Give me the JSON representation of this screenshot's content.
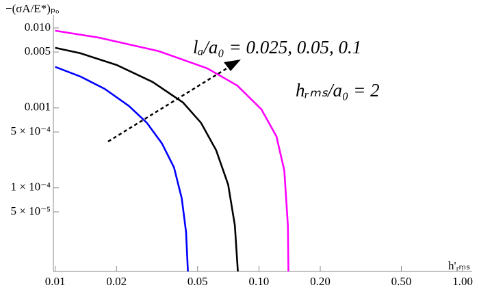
{
  "chart_data": {
    "type": "line",
    "y_label": "−(σA/E*)ₚₒ",
    "x_label": "h'ᵣₘₛ",
    "annotations": [
      "lₐ/a₀ = 0.025, 0.05, 0.1",
      "hᵣₘₛ/a₀ = 2"
    ],
    "log_x": true,
    "log_y": true,
    "xlim": [
      0.0098,
      1.03
    ],
    "ylim": [
      9e-06,
      0.0124
    ],
    "xticks": [
      0.01,
      0.02,
      0.05,
      {
        "value": 0.1,
        "label": "0.10"
      },
      {
        "value": 0.2,
        "label": "0.20"
      },
      {
        "value": 0.5,
        "label": "0.50"
      },
      {
        "value": 1,
        "label": "1.00"
      }
    ],
    "yticks": [
      {
        "value": 0.01,
        "label": "0.010"
      },
      0.005,
      0.001,
      {
        "value": 0.0005,
        "label": "5 × 10⁻⁴"
      },
      {
        "value": 0.0001,
        "label": "1 × 10⁻⁴"
      },
      {
        "value": 5e-05,
        "label": "5 × 10⁻⁵"
      }
    ],
    "series": [
      {
        "color": "#0000ff",
        "x": [
          0.01,
          0.0133,
          0.0175,
          0.023,
          0.0282,
          0.0334,
          0.0383,
          0.0418,
          0.0439,
          0.0448
        ],
        "values": [
          0.00326,
          0.00247,
          0.00173,
          0.00106,
          0.00065,
          0.00036,
          0.00018,
          7.4e-05,
          2.8e-05,
          9e-06
        ]
      },
      {
        "color": "#000000",
        "x": [
          0.01,
          0.0133,
          0.02,
          0.0301,
          0.0424,
          0.052,
          0.0617,
          0.0706,
          0.0762,
          0.0788
        ],
        "values": [
          0.00565,
          0.00483,
          0.00345,
          0.00211,
          0.00117,
          0.00065,
          0.000295,
          0.00011,
          3.4e-05,
          9e-06
        ]
      },
      {
        "color": "#ff00ff",
        "x": [
          0.01,
          0.0163,
          0.0323,
          0.0557,
          0.0782,
          0.1028,
          0.1219,
          0.1332,
          0.1387,
          0.1396
        ],
        "values": [
          0.00925,
          0.00759,
          0.00512,
          0.00313,
          0.00191,
          0.00096,
          0.00044,
          0.000164,
          3.4e-05,
          9e-06
        ]
      }
    ]
  }
}
